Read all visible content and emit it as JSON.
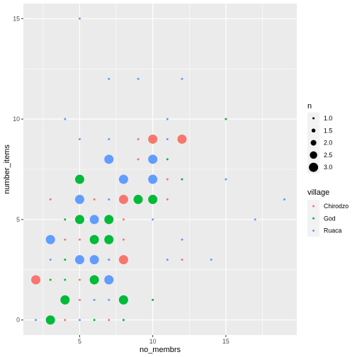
{
  "chart_data": {
    "type": "scatter",
    "xlabel": "no_membrs",
    "ylabel": "number_items",
    "xlim": [
      1.15,
      19.85
    ],
    "ylim": [
      -0.75,
      15.75
    ],
    "x_ticks": [
      5,
      10,
      15
    ],
    "y_ticks": [
      0,
      5,
      10,
      15
    ],
    "grid": true,
    "legend_placement": "right",
    "size_legend": {
      "title": "n",
      "values": [
        1,
        1.5,
        2,
        2.5,
        3
      ],
      "labels": [
        "1.0",
        "1.5",
        "2.0",
        "2.5",
        "3.0"
      ]
    },
    "color_legend": {
      "title": "village",
      "entries": [
        {
          "name": "Chirodzo",
          "color": "#F8766D"
        },
        {
          "name": "God",
          "color": "#00BA38"
        },
        {
          "name": "Ruaca",
          "color": "#619CFF"
        }
      ]
    },
    "points": [
      {
        "x": 2,
        "y": 2,
        "n": 3,
        "village": "Chirodzo"
      },
      {
        "x": 3,
        "y": 6,
        "n": 1,
        "village": "Chirodzo"
      },
      {
        "x": 4,
        "y": 0,
        "n": 1,
        "village": "Chirodzo"
      },
      {
        "x": 4,
        "y": 4,
        "n": 1,
        "village": "Chirodzo"
      },
      {
        "x": 5,
        "y": 1,
        "n": 1,
        "village": "Chirodzo"
      },
      {
        "x": 5,
        "y": 2,
        "n": 1,
        "village": "Chirodzo"
      },
      {
        "x": 5,
        "y": 4,
        "n": 1,
        "village": "Chirodzo"
      },
      {
        "x": 6,
        "y": 5,
        "n": 1,
        "village": "Chirodzo"
      },
      {
        "x": 6,
        "y": 6,
        "n": 1,
        "village": "Chirodzo"
      },
      {
        "x": 7,
        "y": 0,
        "n": 1,
        "village": "Chirodzo"
      },
      {
        "x": 7,
        "y": 3,
        "n": 1,
        "village": "Chirodzo"
      },
      {
        "x": 8,
        "y": 3,
        "n": 3,
        "village": "Chirodzo"
      },
      {
        "x": 8,
        "y": 4,
        "n": 1,
        "village": "Chirodzo"
      },
      {
        "x": 8,
        "y": 5,
        "n": 1,
        "village": "Chirodzo"
      },
      {
        "x": 8,
        "y": 6,
        "n": 3,
        "village": "Chirodzo"
      },
      {
        "x": 9,
        "y": 8,
        "n": 1,
        "village": "Chirodzo"
      },
      {
        "x": 9,
        "y": 9,
        "n": 1,
        "village": "Chirodzo"
      },
      {
        "x": 10,
        "y": 9,
        "n": 3,
        "village": "Chirodzo"
      },
      {
        "x": 11,
        "y": 6,
        "n": 1,
        "village": "Chirodzo"
      },
      {
        "x": 11,
        "y": 7,
        "n": 1,
        "village": "Chirodzo"
      },
      {
        "x": 12,
        "y": 3,
        "n": 1,
        "village": "Chirodzo"
      },
      {
        "x": 12,
        "y": 9,
        "n": 3,
        "village": "Chirodzo"
      },
      {
        "x": 3,
        "y": 0,
        "n": 3,
        "village": "God"
      },
      {
        "x": 3,
        "y": 2,
        "n": 1,
        "village": "God"
      },
      {
        "x": 4,
        "y": 1,
        "n": 3,
        "village": "God"
      },
      {
        "x": 4,
        "y": 2,
        "n": 1,
        "village": "God"
      },
      {
        "x": 4,
        "y": 3,
        "n": 1,
        "village": "God"
      },
      {
        "x": 4,
        "y": 5,
        "n": 1,
        "village": "God"
      },
      {
        "x": 5,
        "y": 5,
        "n": 3,
        "village": "God"
      },
      {
        "x": 5,
        "y": 7,
        "n": 3,
        "village": "God"
      },
      {
        "x": 6,
        "y": 0,
        "n": 1,
        "village": "God"
      },
      {
        "x": 6,
        "y": 2,
        "n": 3,
        "village": "God"
      },
      {
        "x": 6,
        "y": 4,
        "n": 3,
        "village": "God"
      },
      {
        "x": 7,
        "y": 4,
        "n": 3,
        "village": "God"
      },
      {
        "x": 7,
        "y": 5,
        "n": 3,
        "village": "God"
      },
      {
        "x": 8,
        "y": 0,
        "n": 1,
        "village": "God"
      },
      {
        "x": 8,
        "y": 1,
        "n": 3,
        "village": "God"
      },
      {
        "x": 9,
        "y": 6,
        "n": 3,
        "village": "God"
      },
      {
        "x": 10,
        "y": 1,
        "n": 1,
        "village": "God"
      },
      {
        "x": 10,
        "y": 6,
        "n": 3,
        "village": "God"
      },
      {
        "x": 11,
        "y": 8,
        "n": 1,
        "village": "God"
      },
      {
        "x": 12,
        "y": 7,
        "n": 1,
        "village": "God"
      },
      {
        "x": 15,
        "y": 10,
        "n": 1,
        "village": "God"
      },
      {
        "x": 2,
        "y": 0,
        "n": 1,
        "village": "Ruaca"
      },
      {
        "x": 3,
        "y": 3,
        "n": 1,
        "village": "Ruaca"
      },
      {
        "x": 3,
        "y": 4,
        "n": 3,
        "village": "Ruaca"
      },
      {
        "x": 4,
        "y": 10,
        "n": 1,
        "village": "Ruaca"
      },
      {
        "x": 5,
        "y": 0,
        "n": 1,
        "village": "Ruaca"
      },
      {
        "x": 5,
        "y": 3,
        "n": 3,
        "village": "Ruaca"
      },
      {
        "x": 5,
        "y": 6,
        "n": 3,
        "village": "Ruaca"
      },
      {
        "x": 5,
        "y": 9,
        "n": 1,
        "village": "Ruaca"
      },
      {
        "x": 5,
        "y": 15,
        "n": 1,
        "village": "Ruaca"
      },
      {
        "x": 6,
        "y": 1,
        "n": 1,
        "village": "Ruaca"
      },
      {
        "x": 6,
        "y": 3,
        "n": 3,
        "village": "Ruaca"
      },
      {
        "x": 6,
        "y": 5,
        "n": 3,
        "village": "Ruaca"
      },
      {
        "x": 7,
        "y": 1,
        "n": 1,
        "village": "Ruaca"
      },
      {
        "x": 7,
        "y": 2,
        "n": 3,
        "village": "Ruaca"
      },
      {
        "x": 7,
        "y": 3,
        "n": 1,
        "village": "Ruaca"
      },
      {
        "x": 7,
        "y": 6,
        "n": 1,
        "village": "Ruaca"
      },
      {
        "x": 7,
        "y": 8,
        "n": 3,
        "village": "Ruaca"
      },
      {
        "x": 7,
        "y": 9,
        "n": 1,
        "village": "Ruaca"
      },
      {
        "x": 7,
        "y": 12,
        "n": 1,
        "village": "Ruaca"
      },
      {
        "x": 8,
        "y": 7,
        "n": 3,
        "village": "Ruaca"
      },
      {
        "x": 9,
        "y": 12,
        "n": 1,
        "village": "Ruaca"
      },
      {
        "x": 10,
        "y": 5,
        "n": 1,
        "village": "Ruaca"
      },
      {
        "x": 10,
        "y": 7,
        "n": 3,
        "village": "Ruaca"
      },
      {
        "x": 10,
        "y": 8,
        "n": 3,
        "village": "Ruaca"
      },
      {
        "x": 11,
        "y": 3,
        "n": 1,
        "village": "Ruaca"
      },
      {
        "x": 11,
        "y": 9,
        "n": 1,
        "village": "Ruaca"
      },
      {
        "x": 11,
        "y": 10,
        "n": 1,
        "village": "Ruaca"
      },
      {
        "x": 12,
        "y": 4,
        "n": 1,
        "village": "Ruaca"
      },
      {
        "x": 12,
        "y": 12,
        "n": 1,
        "village": "Ruaca"
      },
      {
        "x": 14,
        "y": 3,
        "n": 1,
        "village": "Ruaca"
      },
      {
        "x": 15,
        "y": 7,
        "n": 1,
        "village": "Ruaca"
      },
      {
        "x": 17,
        "y": 5,
        "n": 1,
        "village": "Ruaca"
      },
      {
        "x": 19,
        "y": 6,
        "n": 1,
        "village": "Ruaca"
      }
    ]
  }
}
